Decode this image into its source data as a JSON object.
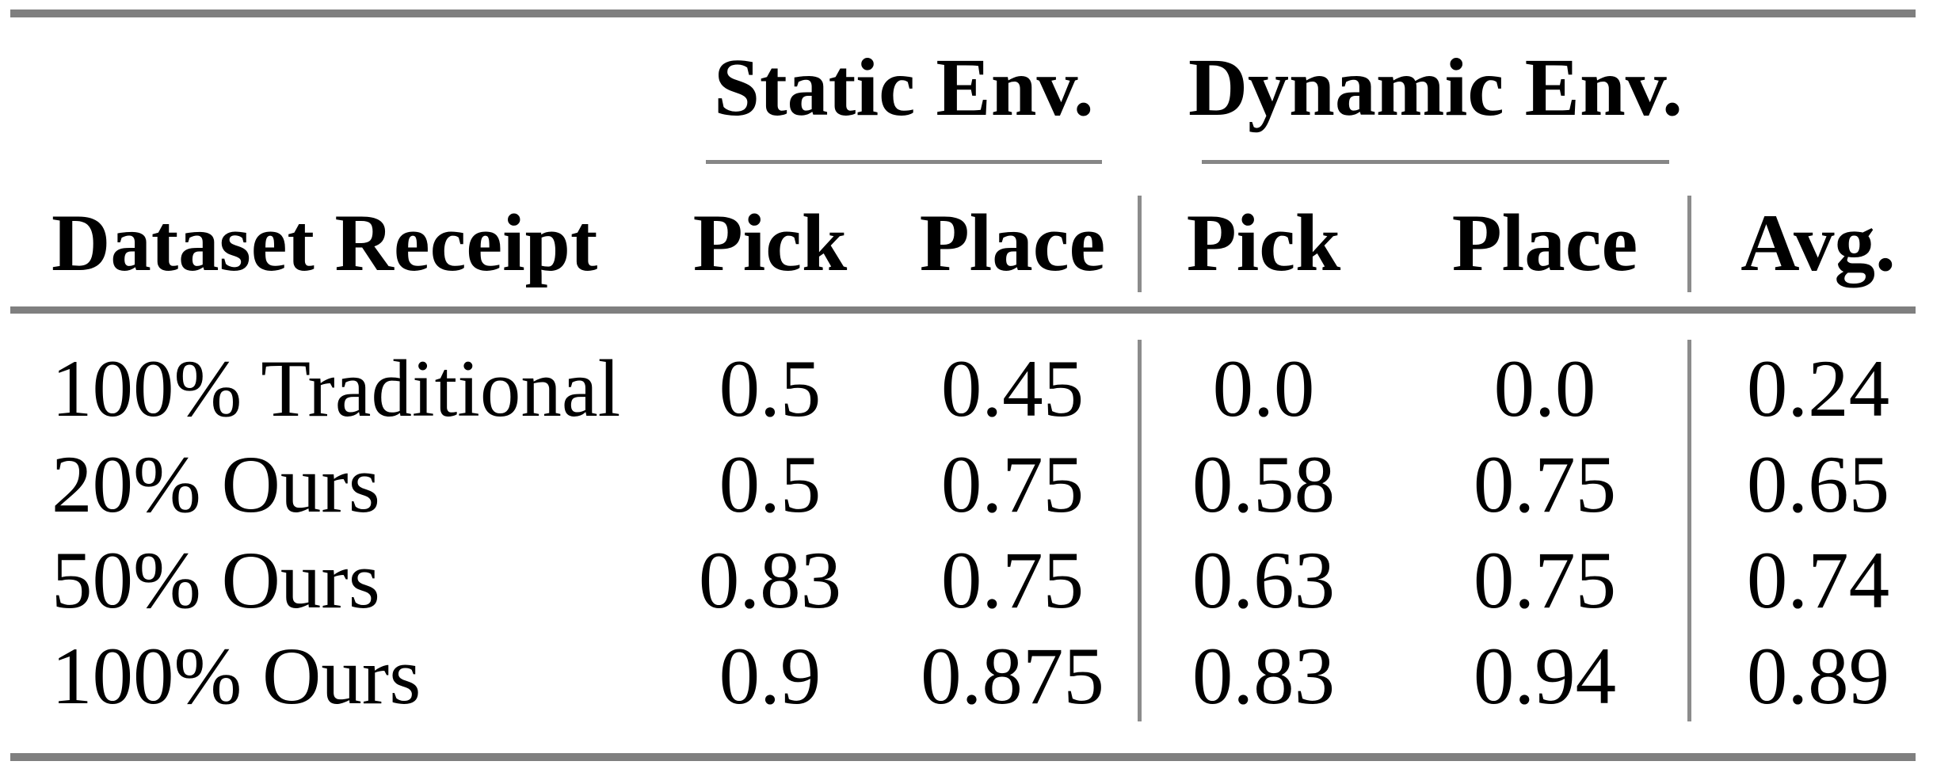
{
  "colors": {
    "background": "#ffffff",
    "text": "#000000",
    "rule_thick": "#7f7f7f",
    "rule_thin": "#8c8c8c"
  },
  "table": {
    "group_headers": [
      {
        "label": "Static Env."
      },
      {
        "label": "Dynamic Env."
      }
    ],
    "column_headers": [
      "Dataset Receipt",
      "Pick",
      "Place",
      "Pick",
      "Place",
      "Avg."
    ],
    "rows": [
      {
        "label": "100% Traditional",
        "static_pick": "0.5",
        "static_place": "0.45",
        "dynamic_pick": "0.0",
        "dynamic_place": "0.0",
        "avg": "0.24"
      },
      {
        "label": "20% Ours",
        "static_pick": "0.5",
        "static_place": "0.75",
        "dynamic_pick": "0.58",
        "dynamic_place": "0.75",
        "avg": "0.65"
      },
      {
        "label": "50% Ours",
        "static_pick": "0.83",
        "static_place": "0.75",
        "dynamic_pick": "0.63",
        "dynamic_place": "0.75",
        "avg": "0.74"
      },
      {
        "label": "100% Ours",
        "static_pick": "0.9",
        "static_place": "0.875",
        "dynamic_pick": "0.83",
        "dynamic_place": "0.94",
        "avg": "0.89"
      }
    ]
  },
  "chart_data": {
    "type": "table",
    "column_groups": [
      {
        "label": "Static Env.",
        "columns": [
          "Pick",
          "Place"
        ]
      },
      {
        "label": "Dynamic Env.",
        "columns": [
          "Pick",
          "Place"
        ]
      }
    ],
    "columns": [
      "Dataset Receipt",
      "Static Env. Pick",
      "Static Env. Place",
      "Dynamic Env. Pick",
      "Dynamic Env. Place",
      "Avg."
    ],
    "rows": [
      [
        "100% Traditional",
        0.5,
        0.45,
        0.0,
        0.0,
        0.24
      ],
      [
        "20% Ours",
        0.5,
        0.75,
        0.58,
        0.75,
        0.65
      ],
      [
        "50% Ours",
        0.83,
        0.75,
        0.63,
        0.75,
        0.74
      ],
      [
        "100% Ours",
        0.9,
        0.875,
        0.83,
        0.94,
        0.89
      ]
    ]
  }
}
